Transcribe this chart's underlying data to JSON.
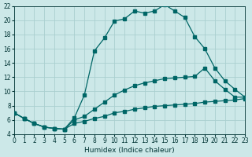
{
  "xlabel": "Humidex (Indice chaleur)",
  "bg_color": "#cce8e8",
  "grid_color": "#aacfcf",
  "line_color": "#006666",
  "xlim": [
    0,
    23
  ],
  "ylim": [
    4,
    22
  ],
  "xticks": [
    0,
    1,
    2,
    3,
    4,
    5,
    6,
    7,
    8,
    9,
    10,
    11,
    12,
    13,
    14,
    15,
    16,
    17,
    18,
    19,
    20,
    21,
    22,
    23
  ],
  "yticks": [
    4,
    6,
    8,
    10,
    12,
    14,
    16,
    18,
    20,
    22
  ],
  "curve1_x": [
    0,
    1,
    2,
    3,
    4,
    5,
    6,
    7,
    8,
    9,
    10,
    11,
    12,
    13,
    14,
    15,
    16,
    17,
    18,
    19,
    20,
    21,
    22,
    23
  ],
  "curve1_y": [
    7,
    6.2,
    5.5,
    5.0,
    4.8,
    4.7,
    6.3,
    9.5,
    15.7,
    17.5,
    19.9,
    20.2,
    21.3,
    21.0,
    21.3,
    22.2,
    21.3,
    20.4,
    17.7,
    16.0,
    13.3,
    11.5,
    10.3,
    9.2
  ],
  "curve2_x": [
    0,
    1,
    2,
    3,
    4,
    5,
    6,
    7,
    8,
    9,
    10,
    11,
    12,
    13,
    14,
    15,
    16,
    17,
    18,
    19,
    20,
    21,
    22,
    23
  ],
  "curve2_y": [
    7,
    6.2,
    5.5,
    5.0,
    4.8,
    4.7,
    6.0,
    6.5,
    7.5,
    8.5,
    9.5,
    10.2,
    10.8,
    11.2,
    11.5,
    11.8,
    11.9,
    12.0,
    12.1,
    13.3,
    11.5,
    10.3,
    9.2,
    9.2
  ],
  "curve3_x": [
    0,
    1,
    2,
    3,
    4,
    5,
    6,
    7,
    8,
    9,
    10,
    11,
    12,
    13,
    14,
    15,
    16,
    17,
    18,
    19,
    20,
    21,
    22,
    23
  ],
  "curve3_y": [
    7,
    6.2,
    5.5,
    5.0,
    4.8,
    4.7,
    5.5,
    5.8,
    6.2,
    6.5,
    7.0,
    7.2,
    7.5,
    7.7,
    7.9,
    8.0,
    8.1,
    8.2,
    8.3,
    8.5,
    8.6,
    8.7,
    8.8,
    9.0
  ],
  "font_color": "#003333",
  "tick_fontsize": 5.5,
  "xlabel_fontsize": 6.5,
  "lw": 0.9,
  "ms": 2.2
}
